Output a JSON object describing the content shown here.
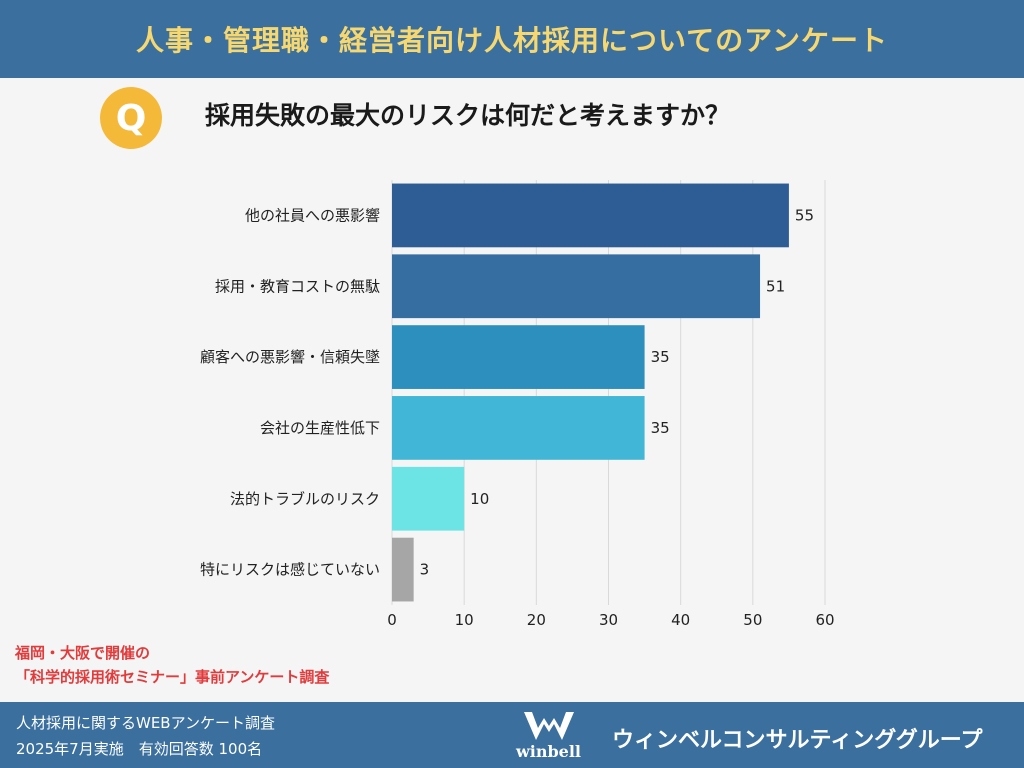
{
  "header": {
    "title": "人事・管理職・経営者向け人材採用についてのアンケート"
  },
  "question": {
    "badge": "Q",
    "text": "採用失敗の最大のリスクは何だと考えますか？"
  },
  "chart_data": {
    "type": "bar",
    "orientation": "horizontal",
    "categories": [
      "他の社員への悪影響",
      "採用・教育コストの無駄",
      "顧客への悪影響・信頼失墜",
      "会社の生産性低下",
      "法的トラブルのリスク",
      "特にリスクは感じていない"
    ],
    "values": [
      55,
      51,
      35,
      35,
      10,
      3
    ],
    "colors": [
      "#2e5d96",
      "#366ea1",
      "#2d8fbe",
      "#41b6d6",
      "#6ce4e6",
      "#a6a6a6"
    ],
    "xlim": [
      0,
      60
    ],
    "xticks": [
      0,
      10,
      20,
      30,
      40,
      50,
      60
    ],
    "grid": "vertical"
  },
  "notes": {
    "line1": "福岡・大阪で開催の",
    "line2": "「科学的採用術セミナー」事前アンケート調査"
  },
  "footer": {
    "line1": "人材採用に関するWEBアンケート調査",
    "line2": "2025年7月実施　有効回答数 100名",
    "logo_text": "winbell",
    "company": "ウィンベルコンサルティンググループ"
  }
}
